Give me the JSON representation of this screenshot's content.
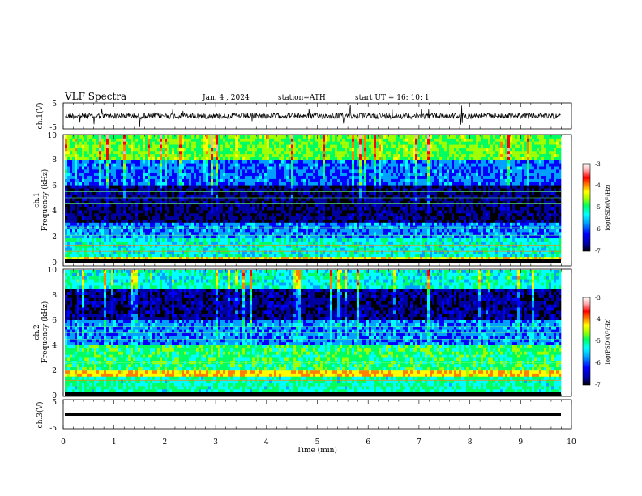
{
  "header": {
    "title": "VLF  Spectra",
    "date": "Jan. 4  , 2024",
    "station": "station=ATH",
    "start": "start  UT  =    16: 10: 1"
  },
  "colors": {
    "black": "#000000",
    "colormap": [
      "#000000",
      "#0000a0",
      "#0000ff",
      "#00a0ff",
      "#00ffff",
      "#00ff60",
      "#a0ff00",
      "#ffff00",
      "#ff8000",
      "#ff0000",
      "#ffb0b0",
      "#ffffff"
    ]
  },
  "chart_data": [
    {
      "type": "line",
      "panel": "ch1-waveform",
      "ylabel": "ch.1(V)",
      "ylim": [
        -5,
        5
      ],
      "yticks": [
        "5",
        "-5"
      ],
      "xlim": [
        0,
        10
      ]
    },
    {
      "type": "heatmap",
      "panel": "ch1-spectrogram",
      "ylabel_top": "ch.1",
      "ylabel": "Frequency  (kHz)",
      "ylim": [
        0,
        10
      ],
      "yticks": [
        "0",
        "2",
        "4",
        "6",
        "8",
        "10"
      ],
      "xlim": [
        0,
        10
      ],
      "colorbar": {
        "label": "log(PSD)(V²/Hz)",
        "range": [
          -7,
          -3
        ],
        "ticks": [
          "-3",
          "-4",
          "-5",
          "-6",
          "-7"
        ]
      }
    },
    {
      "type": "heatmap",
      "panel": "ch2-spectrogram",
      "ylabel_top": "ch.2",
      "ylabel": "Frequency  (kHz)",
      "ylim": [
        0,
        10
      ],
      "yticks": [
        "0",
        "2",
        "4",
        "6",
        "8",
        "10"
      ],
      "xlim": [
        0,
        10
      ],
      "colorbar": {
        "label": "log(PSD)(V²/Hz)",
        "range": [
          -7,
          -3
        ],
        "ticks": [
          "-3",
          "-4",
          "-5",
          "-6",
          "-7"
        ]
      }
    },
    {
      "type": "line",
      "panel": "ch3-waveform",
      "ylabel": "ch.3(V)",
      "ylim": [
        -5,
        5
      ],
      "yticks": [
        "5",
        "-5"
      ],
      "xlim": [
        0,
        10
      ],
      "xticks": [
        "0",
        "1",
        "2",
        "3",
        "4",
        "5",
        "6",
        "7",
        "8",
        "9",
        "10"
      ],
      "xlabel": "Time  (min)"
    }
  ]
}
